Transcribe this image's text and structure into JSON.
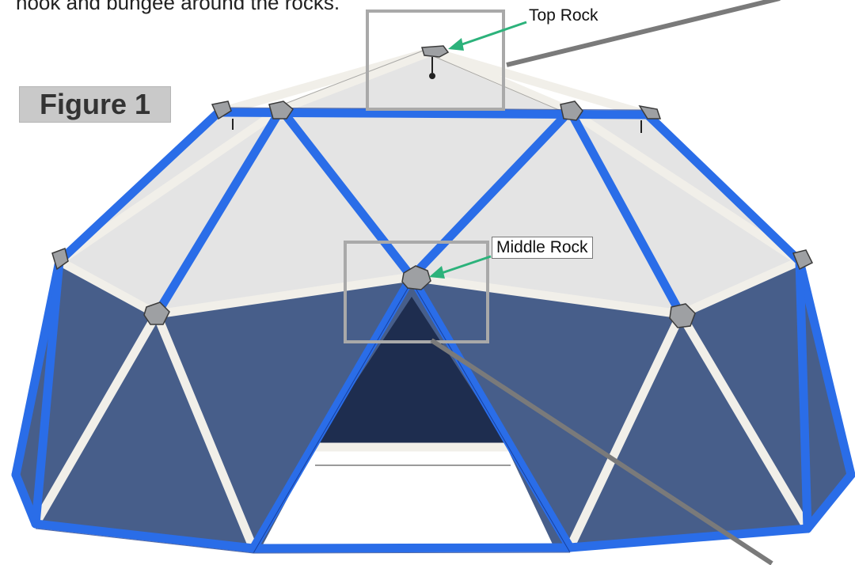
{
  "intro_text": "hook and bungee around the rocks.",
  "figure": {
    "label": "Figure 1",
    "callouts": {
      "top_rock": "Top Rock",
      "middle_rock": "Middle Rock"
    }
  },
  "colors": {
    "frame_blue": "#2a6de8",
    "frame_white": "#f1efe9",
    "canopy_grey": "#e4e4e4",
    "cover_navy": "#475e8a",
    "inner_dark": "#1e2d4f",
    "leader_green": "#2cb27b",
    "leader_grey": "#7a7a7a",
    "rock_grey": "#9ea0a3"
  }
}
